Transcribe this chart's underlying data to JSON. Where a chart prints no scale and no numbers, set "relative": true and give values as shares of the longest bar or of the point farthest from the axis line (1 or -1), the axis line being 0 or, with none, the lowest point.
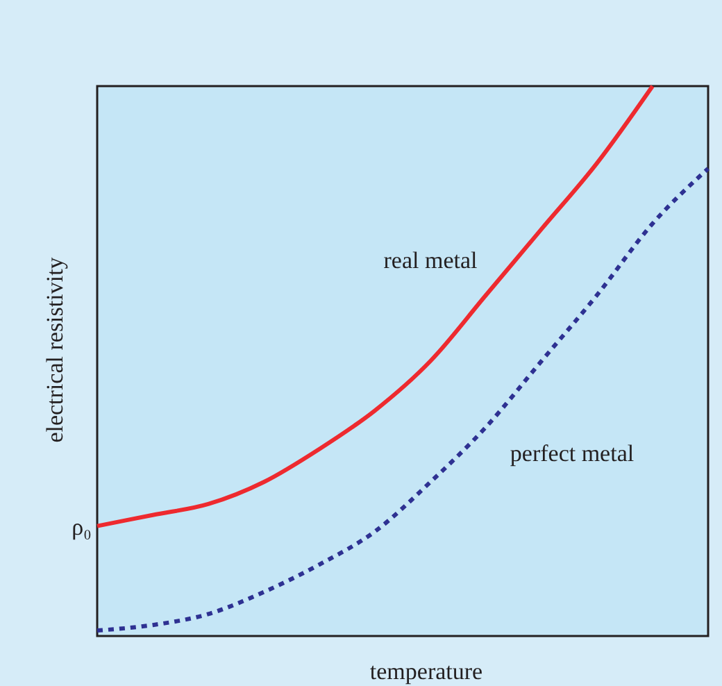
{
  "chart_data": {
    "type": "line",
    "relative": true,
    "xlabel": "temperature",
    "ylabel": "electrical resistivity",
    "categories": [
      null,
      null,
      null,
      null,
      null,
      null,
      null,
      null,
      null,
      null,
      null,
      null
    ],
    "series": [
      {
        "name": "real metal",
        "color": "#ee2a2f",
        "line_style": "solid",
        "values": [
          0.2,
          0.22,
          0.24,
          0.28,
          0.34,
          0.41,
          0.5,
          0.62,
          0.74,
          0.86,
          1.0,
          null
        ]
      },
      {
        "name": "perfect metal",
        "color": "#2e3192",
        "line_style": "dashed",
        "values": [
          0.01,
          0.02,
          0.04,
          0.08,
          0.13,
          0.19,
          0.28,
          0.38,
          0.5,
          0.62,
          0.75,
          0.85
        ]
      }
    ],
    "annotations": [
      "ρ₀"
    ],
    "tick_labels": false,
    "grid": false,
    "legend": false,
    "marker": "none"
  }
}
